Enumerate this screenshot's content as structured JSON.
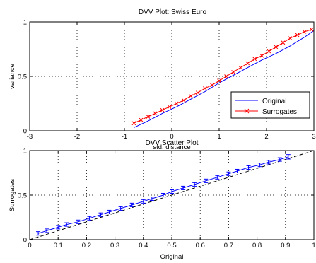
{
  "chart_data": [
    {
      "type": "line",
      "title": "DVV Plot: Swiss Euro",
      "xlabel": "std. distance",
      "ylabel": "variance",
      "xlim": [
        -3,
        3
      ],
      "ylim": [
        0,
        1
      ],
      "xticks": [
        -3,
        -2,
        -1,
        0,
        1,
        2,
        3
      ],
      "yticks": [
        0,
        0.5,
        1
      ],
      "xtick_labels": [
        "-3",
        "-2",
        "-1",
        "0",
        "1",
        "2",
        "3"
      ],
      "ytick_labels": [
        "0",
        "0.5",
        "1"
      ],
      "grid": true,
      "legend_position": "bottom-right",
      "legend": [
        "Original",
        "Surrogates"
      ],
      "series": [
        {
          "name": "Original",
          "color": "#0000ff",
          "marker": "none",
          "x": [
            -0.8,
            -0.5,
            -0.2,
            0.1,
            0.4,
            0.7,
            1.0,
            1.3,
            1.6,
            1.9,
            2.2,
            2.5,
            2.8,
            3.0
          ],
          "y": [
            0.03,
            0.09,
            0.16,
            0.22,
            0.29,
            0.36,
            0.44,
            0.51,
            0.58,
            0.65,
            0.71,
            0.78,
            0.86,
            0.92
          ]
        },
        {
          "name": "Surrogates",
          "color": "#ff0000",
          "marker": "x",
          "x": [
            -0.8,
            -0.65,
            -0.5,
            -0.35,
            -0.2,
            -0.05,
            0.1,
            0.25,
            0.4,
            0.55,
            0.7,
            0.85,
            1.0,
            1.15,
            1.3,
            1.45,
            1.6,
            1.75,
            1.9,
            2.05,
            2.2,
            2.35,
            2.5,
            2.65,
            2.8,
            2.95
          ],
          "y": [
            0.07,
            0.1,
            0.13,
            0.16,
            0.19,
            0.22,
            0.25,
            0.28,
            0.32,
            0.35,
            0.39,
            0.42,
            0.46,
            0.5,
            0.54,
            0.58,
            0.62,
            0.66,
            0.69,
            0.73,
            0.77,
            0.81,
            0.85,
            0.88,
            0.91,
            0.93
          ]
        }
      ]
    },
    {
      "type": "scatter",
      "title": "DVV Scatter Plot",
      "xlabel": "Original",
      "ylabel": "Surrogates",
      "xlim": [
        0,
        1
      ],
      "ylim": [
        0,
        1
      ],
      "xticks": [
        0,
        0.1,
        0.2,
        0.3,
        0.4,
        0.5,
        0.6,
        0.7,
        0.8,
        0.9,
        1
      ],
      "yticks": [
        0,
        0.5,
        1
      ],
      "xtick_labels": [
        "0",
        "0.1",
        "0.2",
        "0.3",
        "0.4",
        "0.5",
        "0.6",
        "0.7",
        "0.8",
        "0.9",
        "1"
      ],
      "ytick_labels": [
        "0",
        "0.5",
        "1"
      ],
      "grid": true,
      "reference_line": {
        "style": "dashed",
        "from": [
          0,
          0
        ],
        "to": [
          1,
          1
        ],
        "color": "#000000"
      },
      "series": [
        {
          "color": "#0000ff",
          "errorbars": true,
          "x": [
            0.03,
            0.06,
            0.1,
            0.13,
            0.17,
            0.21,
            0.25,
            0.28,
            0.32,
            0.36,
            0.4,
            0.43,
            0.47,
            0.5,
            0.54,
            0.58,
            0.62,
            0.66,
            0.7,
            0.73,
            0.77,
            0.81,
            0.84,
            0.88,
            0.91
          ],
          "y": [
            0.07,
            0.1,
            0.14,
            0.17,
            0.2,
            0.24,
            0.28,
            0.31,
            0.35,
            0.39,
            0.43,
            0.46,
            0.5,
            0.54,
            0.58,
            0.62,
            0.66,
            0.7,
            0.74,
            0.77,
            0.81,
            0.84,
            0.87,
            0.9,
            0.93
          ],
          "err": [
            0.02,
            0.02,
            0.02,
            0.02,
            0.02,
            0.02,
            0.02,
            0.02,
            0.02,
            0.02,
            0.02,
            0.02,
            0.02,
            0.02,
            0.02,
            0.02,
            0.02,
            0.02,
            0.02,
            0.02,
            0.02,
            0.02,
            0.02,
            0.02,
            0.025
          ]
        }
      ]
    }
  ]
}
